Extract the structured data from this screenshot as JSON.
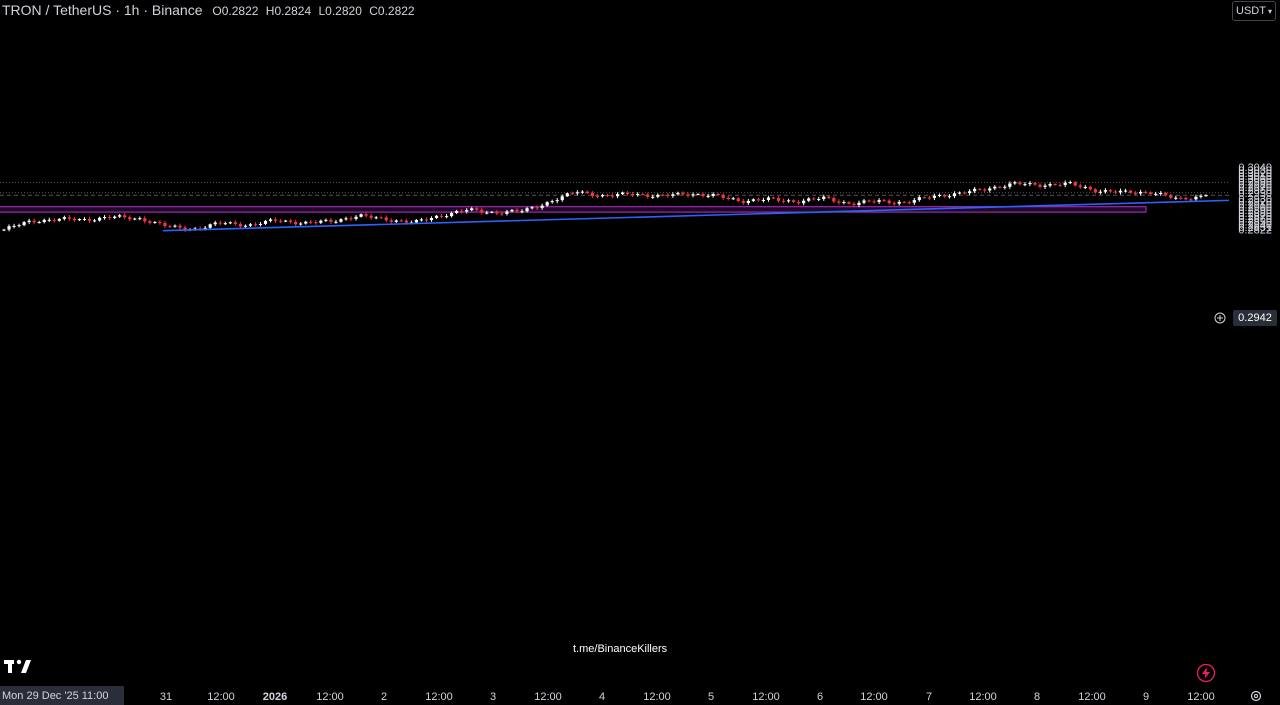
{
  "header": {
    "symbol": "TRON / TetherUS · 1h · Binance",
    "open_label": "O",
    "open": "0.2822",
    "high_label": "H",
    "high": "0.2824",
    "low_label": "L",
    "low": "0.2820",
    "close_label": "C",
    "close": "0.2822"
  },
  "currency_button": {
    "label": "USDT",
    "icon": "chevron-down-icon"
  },
  "last_price_label": "0.2942",
  "watermark": "t.me/BinanceKillers",
  "crosshair_date": "Mon 29 Dec '25   11:00",
  "colors": {
    "background": "#000000",
    "up_candle": "#ffffff",
    "down_candle": "#f23645",
    "trendline": "#2962ff",
    "zone_fill": "#1e0a24",
    "zone_border": "#9c27b0",
    "axis_text": "#d1d4dc",
    "dotted_line": "#555555"
  },
  "chart_data": {
    "type": "candlestick",
    "timeframe": "1h",
    "y_axis": {
      "ylim": [
        0.2818,
        0.3047
      ],
      "ticks": [
        "0.2822",
        "0.2831",
        "0.2840",
        "0.2850",
        "0.2860",
        "0.2870",
        "0.2880",
        "0.2890",
        "0.2900",
        "0.2910",
        "0.2920",
        "0.2930",
        "0.2940",
        "0.2950",
        "0.2960",
        "0.2970",
        "0.2980",
        "0.2990",
        "0.3000",
        "0.3010",
        "0.3020",
        "0.3030",
        "0.3040"
      ]
    },
    "x_axis": {
      "ticks": [
        "31",
        "12:00",
        "2026",
        "12:00",
        "2",
        "12:00",
        "3",
        "12:00",
        "4",
        "12:00",
        "5",
        "12:00",
        "6",
        "12:00",
        "7",
        "12:00",
        "8",
        "12:00",
        "9",
        "12:00"
      ]
    },
    "last_price": 0.2942,
    "horizontal_levels": [
      0.2987,
      0.2951,
      0.2942
    ],
    "demand_zone": {
      "low": 0.2883,
      "high": 0.2902
    },
    "trendline": [
      {
        "date": "Dec 29 '25 ~18:00",
        "price": 0.2818
      },
      {
        "date": "Jan 9 '26 ~13:00",
        "price": 0.2931
      }
    ],
    "price_path": [
      {
        "label": "Dec 29 11:00",
        "price": 0.2822
      },
      {
        "label": "Dec 30 00:00",
        "price": 0.2852
      },
      {
        "label": "Dec 30 12:00",
        "price": 0.2858
      },
      {
        "label": "Dec 30 22:00",
        "price": 0.2857
      },
      {
        "label": "Dec 31 02:00",
        "price": 0.2866
      },
      {
        "label": "Dec 31 08:00",
        "price": 0.286
      },
      {
        "label": "Dec 31 16:00",
        "price": 0.2832
      },
      {
        "label": "Dec 31 20:00",
        "price": 0.2824
      },
      {
        "label": "Jan 1 02:00",
        "price": 0.2846
      },
      {
        "label": "Jan 1 10:00",
        "price": 0.2837
      },
      {
        "label": "Jan 1 16:00",
        "price": 0.2855
      },
      {
        "label": "Jan 1 22:00",
        "price": 0.2844
      },
      {
        "label": "Jan 2 02:00",
        "price": 0.2852
      },
      {
        "label": "Jan 2 06:00",
        "price": 0.287
      },
      {
        "label": "Jan 2 16:00",
        "price": 0.2858
      },
      {
        "label": "Jan 2 22:00",
        "price": 0.2846
      },
      {
        "label": "Jan 3 04:00",
        "price": 0.2872
      },
      {
        "label": "Jan 3 08:00",
        "price": 0.2891
      },
      {
        "label": "Jan 3 14:00",
        "price": 0.2881
      },
      {
        "label": "Jan 3 16:00",
        "price": 0.2887
      },
      {
        "label": "Jan 3 20:00",
        "price": 0.292
      },
      {
        "label": "Jan 4 00:00",
        "price": 0.2955
      },
      {
        "label": "Jan 4 08:00",
        "price": 0.2938
      },
      {
        "label": "Jan 4 14:00",
        "price": 0.2948
      },
      {
        "label": "Jan 4 22:00",
        "price": 0.2938
      },
      {
        "label": "Jan 5 06:00",
        "price": 0.2948
      },
      {
        "label": "Jan 5 12:00",
        "price": 0.294
      },
      {
        "label": "Jan 5 14:00",
        "price": 0.2922
      },
      {
        "label": "Jan 5 22:00",
        "price": 0.2928
      },
      {
        "label": "Jan 6 06:00",
        "price": 0.292
      },
      {
        "label": "Jan 6 12:00",
        "price": 0.2932
      },
      {
        "label": "Jan 6 16:00",
        "price": 0.2912
      },
      {
        "label": "Jan 6 22:00",
        "price": 0.2922
      },
      {
        "label": "Jan 7 04:00",
        "price": 0.2916
      },
      {
        "label": "Jan 7 08:00",
        "price": 0.2939
      },
      {
        "label": "Jan 7 16:00",
        "price": 0.2948
      },
      {
        "label": "Jan 8 00:00",
        "price": 0.2966
      },
      {
        "label": "Jan 8 04:00",
        "price": 0.2982
      },
      {
        "label": "Jan 8 10:00",
        "price": 0.2978
      },
      {
        "label": "Jan 8 14:00",
        "price": 0.2982
      },
      {
        "label": "Jan 8 18:00",
        "price": 0.2958
      },
      {
        "label": "Jan 9 00:00",
        "price": 0.2952
      },
      {
        "label": "Jan 9 06:00",
        "price": 0.2953
      },
      {
        "label": "Jan 9 12:00",
        "price": 0.2927
      },
      {
        "label": "Jan 9 16:00",
        "price": 0.2942
      }
    ]
  }
}
